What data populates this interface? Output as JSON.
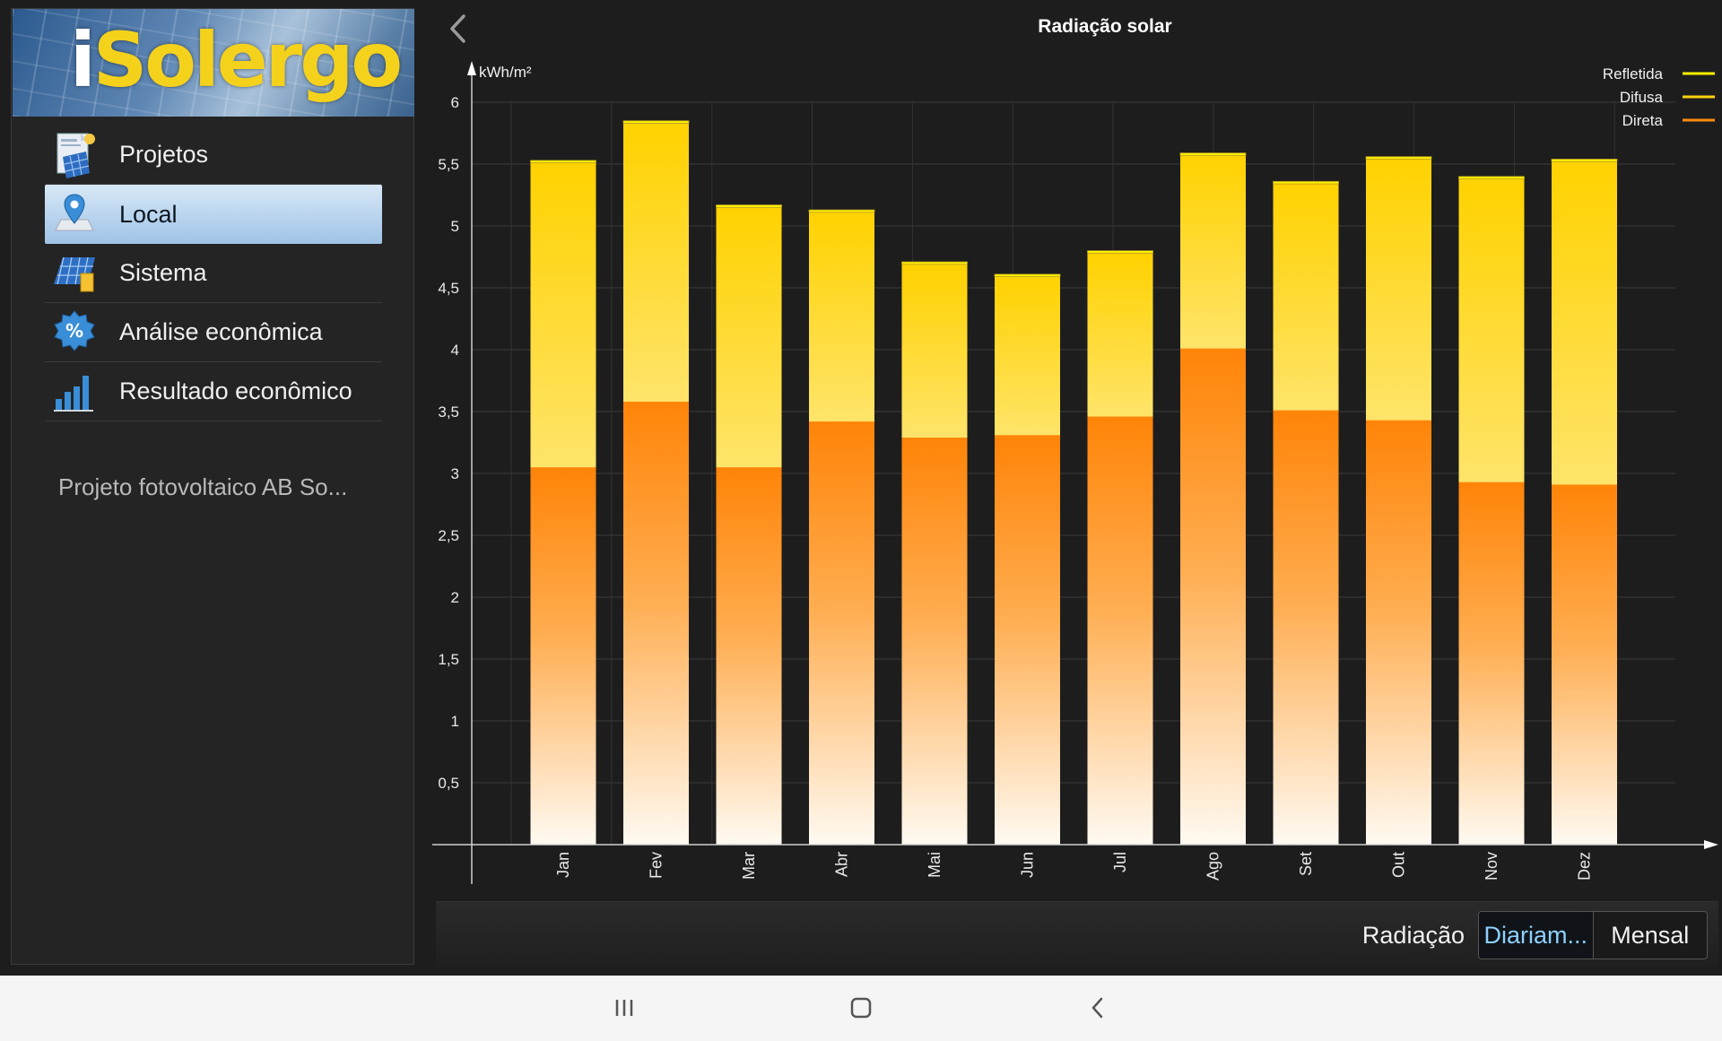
{
  "sidebar": {
    "logo_text_i": "i",
    "logo_text_rest": "Solergo",
    "items": [
      {
        "label": "Projetos",
        "icon": "projects-document-icon",
        "active": false
      },
      {
        "label": "Local",
        "icon": "location-pin-icon",
        "active": true
      },
      {
        "label": "Sistema",
        "icon": "solar-panel-icon",
        "active": false
      },
      {
        "label": "Análise econômica",
        "icon": "percent-badge-icon",
        "active": false
      },
      {
        "label": "Resultado econômico",
        "icon": "bar-chart-icon",
        "active": false
      }
    ],
    "project_name": "Projeto fotovoltaico AB So..."
  },
  "bottom_bar": {
    "label": "Radiação",
    "options": [
      "Diariam...",
      "Mensal"
    ],
    "selected": "Diariam..."
  },
  "colors": {
    "direct": "#ff8c10",
    "diffuse": "#ffd20a",
    "reflected": "#fff200",
    "selected_menu": "#b7d3ef",
    "selected_segment_text": "#8fd0ff"
  },
  "chart_data": {
    "type": "bar",
    "stacked": true,
    "title": "Radiação solar",
    "ylabel": "kWh/m²",
    "xlabel": "",
    "ylim": [
      0,
      6
    ],
    "yticks": [
      "0,5",
      "1",
      "1,5",
      "2",
      "2,5",
      "3",
      "3,5",
      "4",
      "4,5",
      "5",
      "5,5",
      "6"
    ],
    "categories": [
      "Jan",
      "Fev",
      "Mar",
      "Abr",
      "Mai",
      "Jun",
      "Jul",
      "Ago",
      "Set",
      "Out",
      "Nov",
      "Dez"
    ],
    "series": [
      {
        "name": "Direta",
        "values": [
          3.05,
          3.58,
          3.05,
          3.42,
          3.29,
          3.31,
          3.46,
          4.01,
          3.51,
          3.43,
          2.93,
          2.91
        ]
      },
      {
        "name": "Difusa",
        "values": [
          2.46,
          2.25,
          2.1,
          1.69,
          1.4,
          1.28,
          1.32,
          1.56,
          1.83,
          2.11,
          2.45,
          2.61
        ]
      },
      {
        "name": "Refletida",
        "values": [
          0.02,
          0.02,
          0.02,
          0.02,
          0.02,
          0.02,
          0.02,
          0.02,
          0.02,
          0.02,
          0.02,
          0.02
        ]
      }
    ],
    "legend": [
      "Refletida",
      "Difusa",
      "Direta"
    ],
    "legend_position": "top-right",
    "grid": true
  }
}
